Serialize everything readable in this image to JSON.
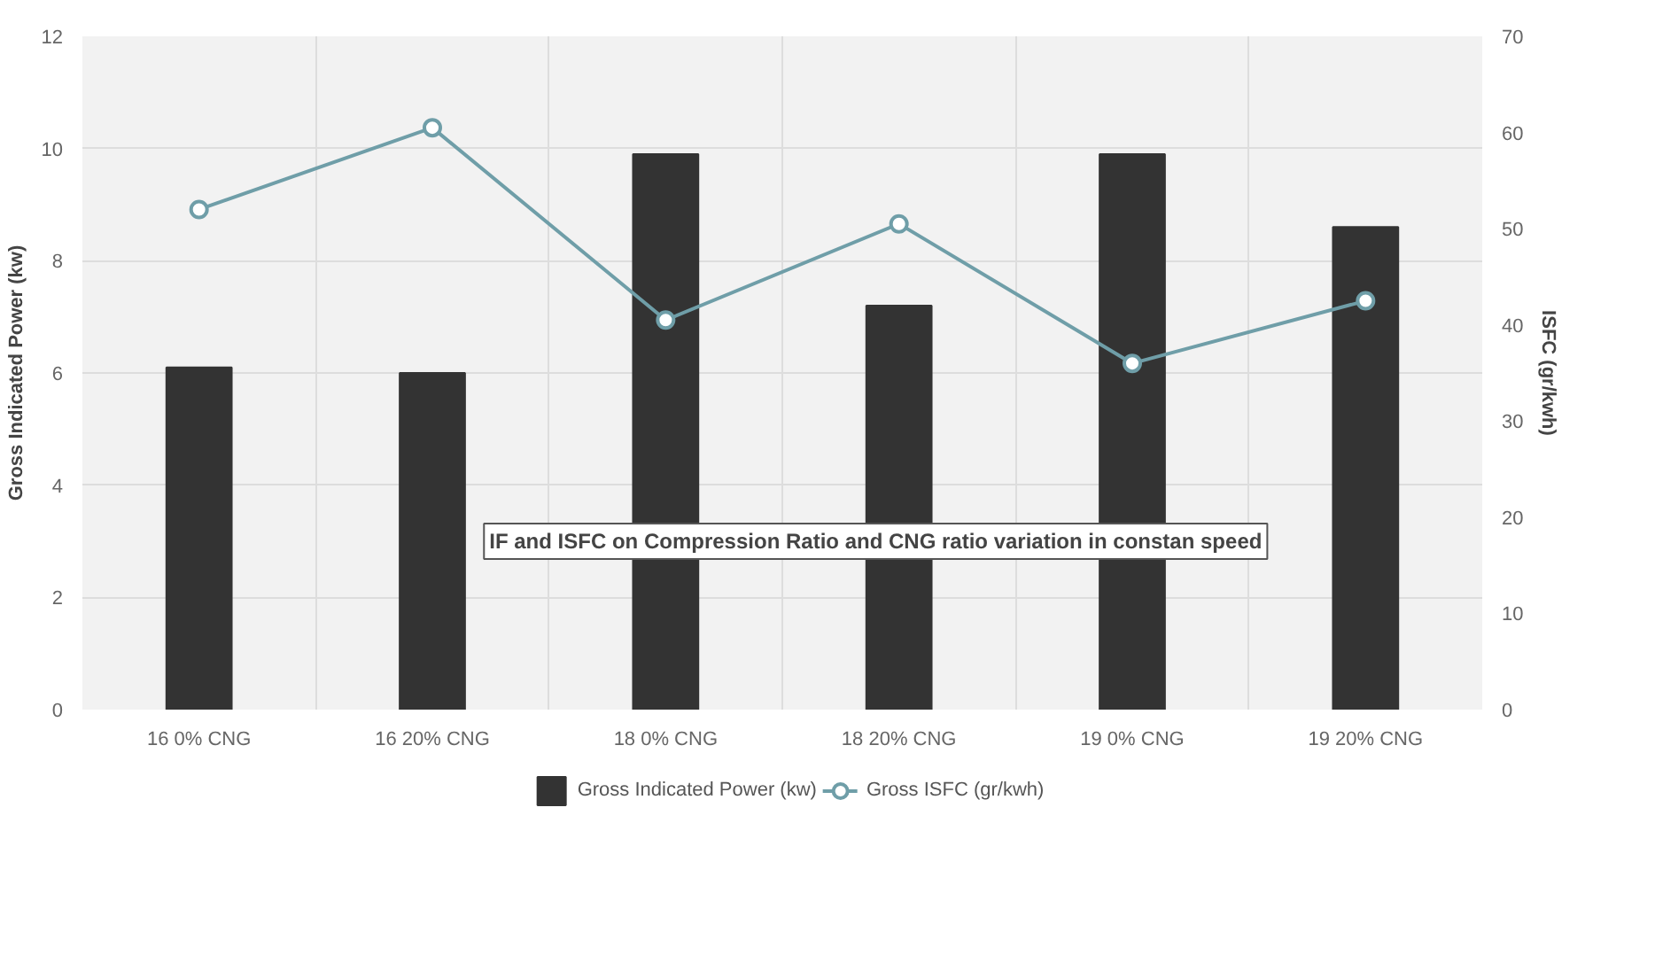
{
  "chart_data": {
    "type": "bar",
    "categories": [
      "16 0% CNG",
      "16 20% CNG",
      "18 0% CNG",
      "18 20% CNG",
      "19 0% CNG",
      "19 20% CNG"
    ],
    "series": [
      {
        "name": "Gross Indicated Power (kw)",
        "color": "#333333",
        "values": [
          6.1,
          6.0,
          9.9,
          7.2,
          9.9,
          8.6
        ]
      },
      {
        "name": "Gross ISFC (gr/kwh)",
        "color": "#6f9ea8",
        "type": "line",
        "axis": "y2",
        "marker": "circle",
        "values": [
          52,
          60.5,
          40.5,
          50.5,
          36,
          42.5
        ]
      }
    ],
    "ylabel": "Gross Indicated Power (kw)",
    "y2label": "ISFC (gr/kwh)",
    "ylim": [
      0,
      12
    ],
    "yticks": [
      0,
      2,
      4,
      6,
      8,
      10,
      12
    ],
    "y2lim": [
      0,
      70
    ],
    "y2ticks": [
      0,
      10,
      20,
      30,
      40,
      50,
      60,
      70
    ],
    "annotations": [
      "IF and ISFC on Compression Ratio and CNG ratio variation in constan speed"
    ],
    "grid": true,
    "legend": "bottom"
  }
}
